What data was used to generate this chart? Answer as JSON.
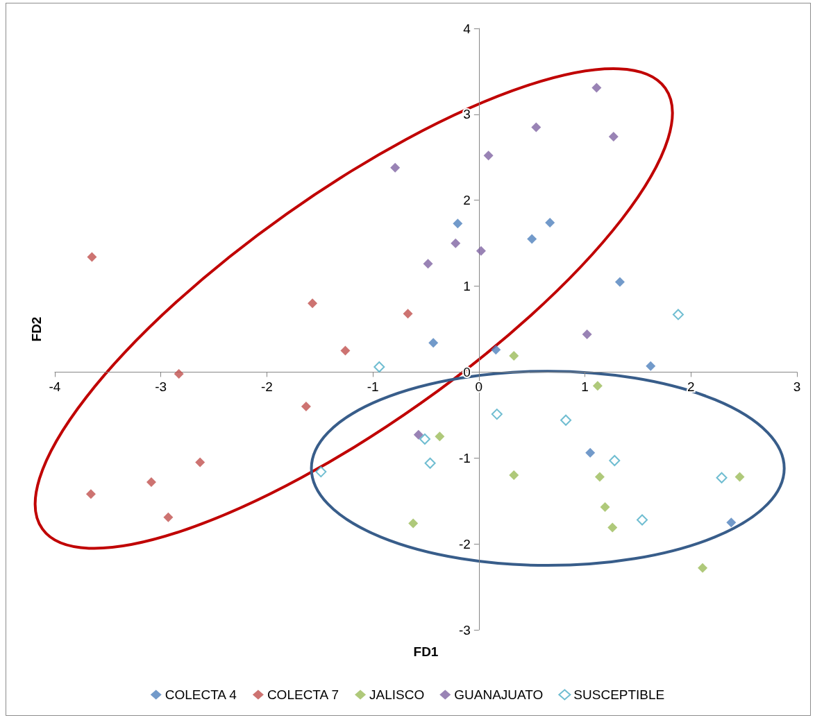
{
  "chart_data": {
    "type": "scatter",
    "xlabel": "FD1",
    "ylabel": "FD2",
    "xlim": [
      -4,
      3
    ],
    "xticks": [
      -4,
      -3,
      -2,
      -1,
      0,
      1,
      2,
      3
    ],
    "ylim": [
      -3,
      4
    ],
    "yticks": [
      -3,
      -2,
      -1,
      0,
      1,
      2,
      3,
      4
    ],
    "legend": "bottom",
    "marker": "diamond",
    "series": [
      {
        "name": "COLECTA 4",
        "color": "#4f81bd",
        "x": [
          -0.2,
          0.67,
          0.5,
          1.33,
          -0.43,
          0.16,
          1.62,
          1.05,
          2.38
        ],
        "values": [
          1.73,
          1.74,
          1.55,
          1.05,
          0.34,
          0.26,
          0.07,
          -0.94,
          -1.75
        ]
      },
      {
        "name": "COLECTA 7",
        "color": "#c0504d",
        "x": [
          -3.65,
          -1.57,
          -0.67,
          -1.26,
          -2.83,
          -1.63,
          -2.63,
          -3.09,
          -3.66,
          -2.93
        ],
        "values": [
          1.34,
          0.8,
          0.68,
          0.25,
          -0.02,
          -0.4,
          -1.05,
          -1.28,
          -1.42,
          -1.69
        ]
      },
      {
        "name": "JALISCO",
        "color": "#9bbb59",
        "x": [
          0.33,
          1.12,
          -0.37,
          0.33,
          1.14,
          2.46,
          1.19,
          -0.62,
          1.26,
          2.11
        ],
        "values": [
          0.19,
          -0.16,
          -0.75,
          -1.2,
          -1.22,
          -1.22,
          -1.57,
          -1.76,
          -1.81,
          -2.28
        ]
      },
      {
        "name": "GUANAJUATO",
        "color": "#8064a2",
        "x": [
          1.11,
          0.54,
          1.27,
          0.09,
          -0.79,
          -0.22,
          0.02,
          -0.48,
          1.02,
          -0.57
        ],
        "values": [
          3.31,
          2.85,
          2.74,
          2.52,
          2.38,
          1.5,
          1.41,
          1.26,
          0.44,
          -0.73
        ]
      },
      {
        "name": "SUSCEPTIBLE",
        "color": "#4bacc6",
        "marker": "diamond-open",
        "x": [
          1.88,
          -0.94,
          0.17,
          0.82,
          -0.51,
          -0.46,
          1.28,
          -1.49,
          2.29,
          1.54
        ],
        "values": [
          0.67,
          0.06,
          -0.49,
          -0.56,
          -0.78,
          -1.06,
          -1.03,
          -1.16,
          -1.23,
          -1.72
        ]
      }
    ]
  }
}
